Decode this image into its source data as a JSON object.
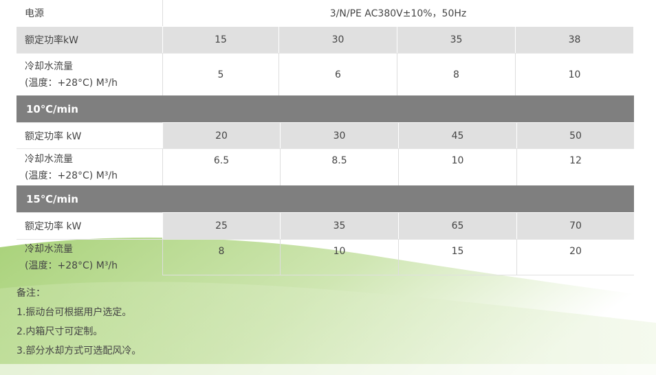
{
  "table": {
    "power_supply": {
      "label": "电源",
      "value": "3/N/PE AC380V±10%，50Hz"
    },
    "sections": [
      {
        "rows": [
          {
            "label": [
              "额定功率kW"
            ],
            "values": [
              15,
              30,
              35,
              38
            ]
          },
          {
            "label": [
              "冷却水流量",
              "(温度：+28°C) M³/h"
            ],
            "values": [
              5,
              6,
              8,
              10
            ]
          }
        ]
      },
      {
        "title": "10℃/min",
        "rows": [
          {
            "label": [
              "额定功率 kW"
            ],
            "values": [
              20,
              30,
              45,
              50
            ]
          },
          {
            "label": [
              "冷却水流量",
              "(温度：+28°C) M³/h"
            ],
            "values": [
              6.5,
              8.5,
              10,
              12
            ]
          }
        ]
      },
      {
        "title": "15℃/min",
        "rows": [
          {
            "label": [
              "额定功率 kW"
            ],
            "values": [
              25,
              35,
              65,
              70
            ]
          },
          {
            "label": [
              "冷却水流量",
              "(温度：+28°C) M³/h"
            ],
            "values": [
              8,
              10,
              15,
              20
            ]
          }
        ]
      }
    ]
  },
  "notes": {
    "title": "备注：",
    "items": [
      "1.振动台可根据用户选定。",
      "2.内箱尺寸可定制。",
      "3.部分水却方式可选配风冷。"
    ]
  }
}
